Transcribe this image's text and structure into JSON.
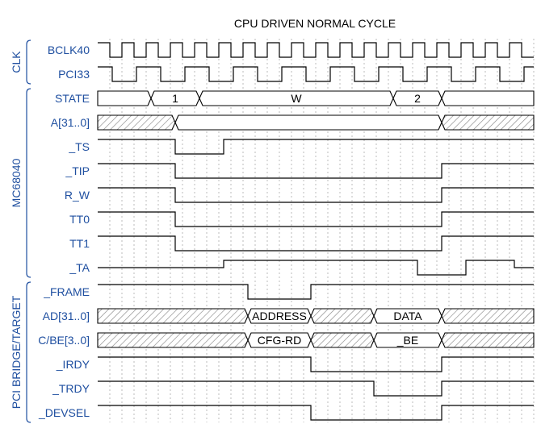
{
  "title": "CPU DRIVEN NORMAL CYCLE",
  "colors": {
    "label": "#1f4fa0",
    "line": "#000000",
    "grid": "#bbbbbb",
    "hatch": "#888888"
  },
  "groups": [
    {
      "name": "CLK",
      "signals": [
        "BCLK40",
        "PCI33"
      ]
    },
    {
      "name": "MC68040",
      "signals": [
        "STATE",
        "A[31..0]",
        "_TS",
        "_TIP",
        "R_W",
        "TT0",
        "TT1",
        "_TA"
      ]
    },
    {
      "name": "PCI BRIDGE/TARGET",
      "signals": [
        "_FRAME",
        "AD[31..0]",
        "C/BE[3..0]",
        "_IRDY",
        "_TRDY",
        "_DEVSEL"
      ]
    }
  ],
  "signals": [
    {
      "name": "BCLK40",
      "type": "clock",
      "period": 1,
      "start": "high"
    },
    {
      "name": "PCI33",
      "type": "clock",
      "period": 2,
      "start": "high",
      "phase": 0.6
    },
    {
      "name": "STATE",
      "type": "bus",
      "segments": [
        {
          "from": 0,
          "to": 2.2,
          "kind": "value",
          "text": ""
        },
        {
          "from": 2.2,
          "to": 4.2,
          "kind": "value",
          "text": "1"
        },
        {
          "from": 4.2,
          "to": 12.2,
          "kind": "value",
          "text": "W"
        },
        {
          "from": 12.2,
          "to": 14.2,
          "kind": "value",
          "text": "2"
        },
        {
          "from": 14.2,
          "to": 18,
          "kind": "value",
          "text": ""
        }
      ]
    },
    {
      "name": "A[31..0]",
      "type": "bus",
      "segments": [
        {
          "from": 0,
          "to": 3.2,
          "kind": "hatch",
          "text": ""
        },
        {
          "from": 3.2,
          "to": 14.2,
          "kind": "value",
          "text": ""
        },
        {
          "from": 14.2,
          "to": 18,
          "kind": "hatch",
          "text": ""
        }
      ]
    },
    {
      "name": "_TS",
      "type": "wave",
      "points": [
        [
          0,
          1
        ],
        [
          3.2,
          1
        ],
        [
          3.2,
          0
        ],
        [
          5.2,
          0
        ],
        [
          5.2,
          1
        ],
        [
          18,
          1
        ]
      ]
    },
    {
      "name": "_TIP",
      "type": "wave",
      "points": [
        [
          0,
          1
        ],
        [
          3.2,
          1
        ],
        [
          3.2,
          0
        ],
        [
          14.2,
          0
        ],
        [
          14.2,
          1
        ],
        [
          18,
          1
        ]
      ]
    },
    {
      "name": "R_W",
      "type": "wave",
      "points": [
        [
          0,
          1
        ],
        [
          3.2,
          1
        ],
        [
          3.2,
          0
        ],
        [
          14.2,
          0
        ],
        [
          14.2,
          1
        ],
        [
          18,
          1
        ]
      ]
    },
    {
      "name": "TT0",
      "type": "wave",
      "points": [
        [
          0,
          1
        ],
        [
          3.2,
          1
        ],
        [
          3.2,
          0
        ],
        [
          14.2,
          0
        ],
        [
          14.2,
          1
        ],
        [
          18,
          1
        ]
      ]
    },
    {
      "name": "TT1",
      "type": "wave",
      "points": [
        [
          0,
          1
        ],
        [
          3.2,
          1
        ],
        [
          3.2,
          0
        ],
        [
          14.2,
          0
        ],
        [
          14.2,
          1
        ],
        [
          18,
          1
        ]
      ]
    },
    {
      "name": "_TA",
      "type": "wave",
      "points": [
        [
          0,
          0.5
        ],
        [
          5.2,
          0.5
        ],
        [
          5.2,
          1
        ],
        [
          13.2,
          1
        ],
        [
          13.2,
          0
        ],
        [
          15.2,
          0
        ],
        [
          15.2,
          1
        ],
        [
          17.2,
          1
        ],
        [
          17.2,
          0.5
        ],
        [
          18,
          0.5
        ]
      ]
    },
    {
      "name": "_FRAME",
      "type": "wave",
      "points": [
        [
          0,
          1
        ],
        [
          6.2,
          1
        ],
        [
          6.2,
          0
        ],
        [
          8.8,
          0
        ],
        [
          8.8,
          1
        ],
        [
          18,
          1
        ]
      ]
    },
    {
      "name": "AD[31..0]",
      "type": "bus",
      "segments": [
        {
          "from": 0,
          "to": 6.2,
          "kind": "hatch",
          "text": ""
        },
        {
          "from": 6.2,
          "to": 8.8,
          "kind": "value",
          "text": "ADDRESS"
        },
        {
          "from": 8.8,
          "to": 11.4,
          "kind": "hatch",
          "text": ""
        },
        {
          "from": 11.4,
          "to": 14.2,
          "kind": "value",
          "text": "DATA"
        },
        {
          "from": 14.2,
          "to": 18,
          "kind": "hatch",
          "text": ""
        }
      ]
    },
    {
      "name": "C/BE[3..0]",
      "type": "bus",
      "segments": [
        {
          "from": 0,
          "to": 6.2,
          "kind": "hatch",
          "text": ""
        },
        {
          "from": 6.2,
          "to": 8.8,
          "kind": "value",
          "text": "CFG-RD"
        },
        {
          "from": 8.8,
          "to": 11.4,
          "kind": "hatch",
          "text": ""
        },
        {
          "from": 11.4,
          "to": 14.2,
          "kind": "value",
          "text": "_BE"
        },
        {
          "from": 14.2,
          "to": 18,
          "kind": "hatch",
          "text": ""
        }
      ]
    },
    {
      "name": "_IRDY",
      "type": "wave",
      "points": [
        [
          0,
          1
        ],
        [
          8.8,
          1
        ],
        [
          8.8,
          0
        ],
        [
          14.2,
          0
        ],
        [
          14.2,
          1
        ],
        [
          18,
          1
        ]
      ]
    },
    {
      "name": "_TRDY",
      "type": "wave",
      "points": [
        [
          0,
          1
        ],
        [
          11.4,
          1
        ],
        [
          11.4,
          0
        ],
        [
          14.2,
          0
        ],
        [
          14.2,
          1
        ],
        [
          18,
          1
        ]
      ]
    },
    {
      "name": "_DEVSEL",
      "type": "wave",
      "points": [
        [
          0,
          1
        ],
        [
          8.8,
          1
        ],
        [
          8.8,
          0
        ],
        [
          14.2,
          0
        ],
        [
          14.2,
          1
        ],
        [
          18,
          1
        ]
      ]
    }
  ]
}
